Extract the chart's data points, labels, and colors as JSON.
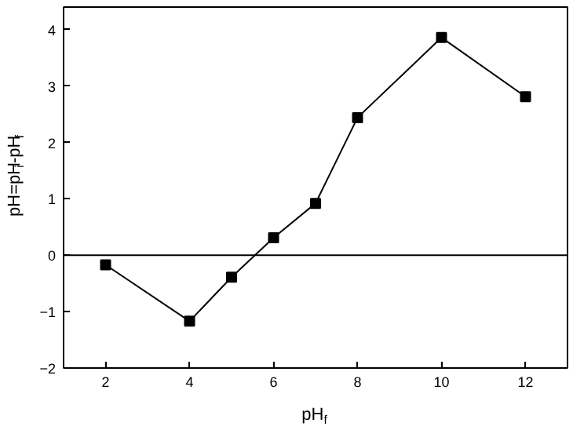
{
  "chart_data": {
    "type": "line",
    "xlabel": "pH$_{f}$",
    "ylabel": "pH=pH$_{i}$-pH$_{f}$",
    "x": [
      2,
      4,
      5,
      6,
      7,
      8,
      10,
      12
    ],
    "series": [
      {
        "color": "#000000",
        "values": [
          -0.17,
          -1.17,
          -0.39,
          0.31,
          0.92,
          2.44,
          3.86,
          2.81
        ]
      }
    ],
    "xlim": [
      1,
      13
    ],
    "xticks": [
      2,
      4,
      6,
      8,
      10,
      12
    ],
    "ylim": [
      -2,
      4.4
    ],
    "yticks": [
      -2,
      -1,
      0,
      1,
      2,
      3,
      4
    ],
    "ref_lines": [
      {
        "axis": "y",
        "value": 0,
        "color": "#000000"
      }
    ],
    "marker": "square",
    "line_style": "solid",
    "grid": false
  }
}
